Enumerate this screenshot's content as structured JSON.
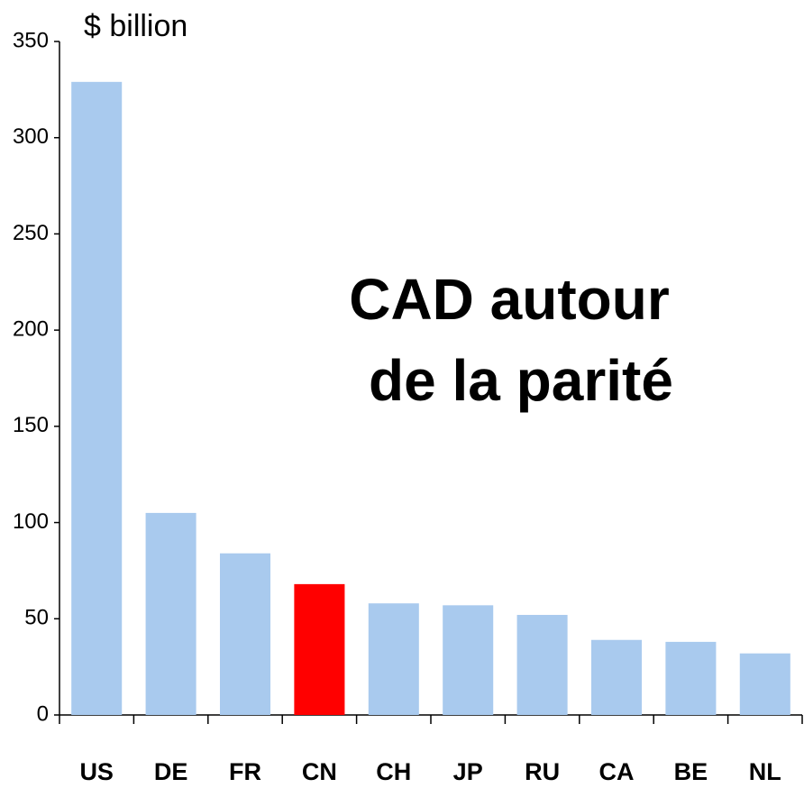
{
  "chart_data": {
    "type": "bar",
    "y_label": "$ billion",
    "annotation": [
      "CAD autour",
      "de la parité"
    ],
    "categories": [
      "US",
      "DE",
      "FR",
      "CN",
      "CH",
      "JP",
      "RU",
      "CA",
      "BE",
      "NL"
    ],
    "values": [
      329,
      105,
      84,
      68,
      58,
      57,
      52,
      39,
      38,
      32
    ],
    "colors": [
      "#a9caee",
      "#a9caee",
      "#a9caee",
      "#ff0000",
      "#a9caee",
      "#a9caee",
      "#a9caee",
      "#a9caee",
      "#a9caee",
      "#a9caee"
    ],
    "ylim": [
      0,
      350
    ],
    "yticks": [
      0,
      50,
      100,
      150,
      200,
      250,
      300,
      350
    ],
    "grid": false
  }
}
